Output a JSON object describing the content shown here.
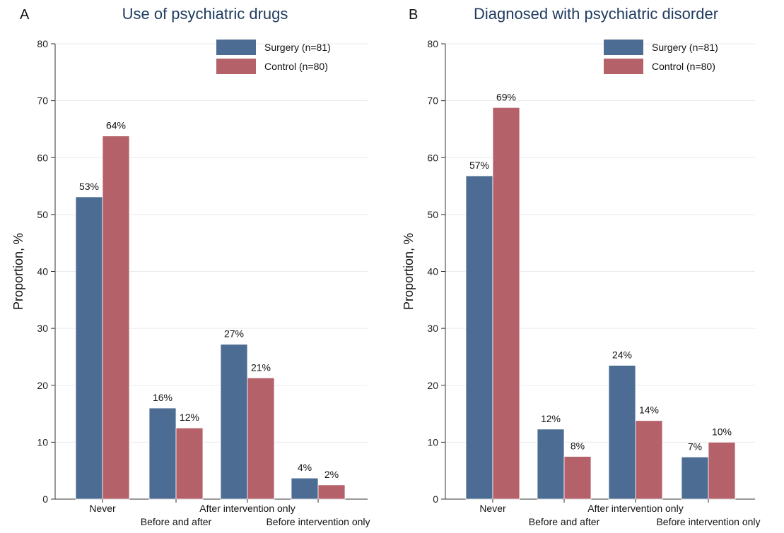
{
  "colors": {
    "surgery": "#4c6c93",
    "control": "#b5616a",
    "grid": "#e6ecef",
    "axis": "#333333"
  },
  "chart_data": [
    {
      "type": "bar",
      "panel_letter": "A",
      "title": "Use of psychiatric drugs",
      "ylabel": "Proportion, %",
      "xlabel": "",
      "ylim": [
        0,
        80
      ],
      "yticks": [
        0,
        10,
        20,
        30,
        40,
        50,
        60,
        70,
        80
      ],
      "grid": true,
      "legend_position": "top-right",
      "categories": [
        "Never",
        "Before and after",
        "After intervention only",
        "Before intervention only"
      ],
      "series": [
        {
          "name": "Surgery (n=81)",
          "values": [
            53.1,
            16.0,
            27.2,
            3.7
          ],
          "labels": [
            "53%",
            "16%",
            "27%",
            "4%"
          ]
        },
        {
          "name": "Control (n=80)",
          "values": [
            63.8,
            12.5,
            21.3,
            2.5
          ],
          "labels": [
            "64%",
            "12%",
            "21%",
            "2%"
          ]
        }
      ]
    },
    {
      "type": "bar",
      "panel_letter": "B",
      "title": "Diagnosed with psychiatric disorder",
      "ylabel": "Proportion, %",
      "xlabel": "",
      "ylim": [
        0,
        80
      ],
      "yticks": [
        0,
        10,
        20,
        30,
        40,
        50,
        60,
        70,
        80
      ],
      "grid": true,
      "legend_position": "top-right",
      "categories": [
        "Never",
        "Before and after",
        "After intervention only",
        "Before intervention only"
      ],
      "series": [
        {
          "name": "Surgery (n=81)",
          "values": [
            56.8,
            12.3,
            23.5,
            7.4
          ],
          "labels": [
            "57%",
            "12%",
            "24%",
            "7%"
          ]
        },
        {
          "name": "Control (n=80)",
          "values": [
            68.8,
            7.5,
            13.8,
            10.0
          ],
          "labels": [
            "69%",
            "8%",
            "14%",
            "10%"
          ]
        }
      ]
    }
  ]
}
